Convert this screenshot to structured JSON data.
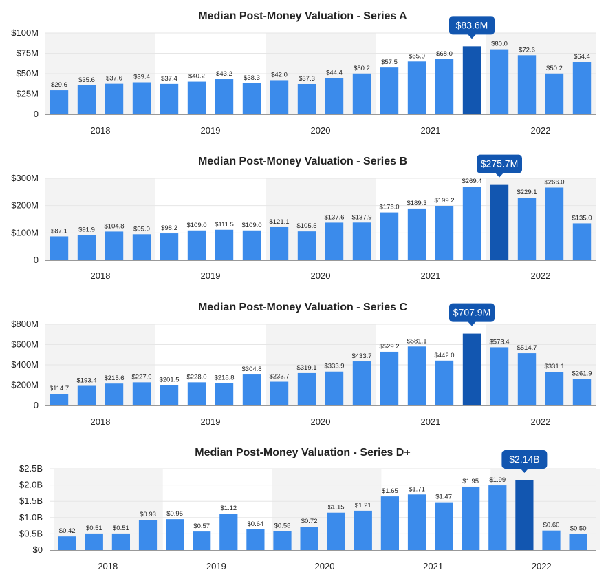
{
  "colors": {
    "bar": "#3b8beb",
    "highlight": "#1256b0",
    "band": "#f3f3f3",
    "grid": "#e6e6e6",
    "axis": "#999999"
  },
  "chart_data": [
    {
      "type": "bar",
      "title": "Median Post-Money Valuation - Series A",
      "year_labels": [
        "2018",
        "2019",
        "2020",
        "2021",
        "2022"
      ],
      "values": [
        29.6,
        35.6,
        37.6,
        39.4,
        37.4,
        40.2,
        43.2,
        38.3,
        42.0,
        37.3,
        44.4,
        50.2,
        57.5,
        65.0,
        68.0,
        83.6,
        80.0,
        72.6,
        50.2,
        64.4
      ],
      "labels": [
        "$29.6",
        "$35.6",
        "$37.6",
        "$39.4",
        "$37.4",
        "$40.2",
        "$43.2",
        "$38.3",
        "$42.0",
        "$37.3",
        "$44.4",
        "$50.2",
        "$57.5",
        "$65.0",
        "$68.0",
        "",
        "$80.0",
        "$72.6",
        "$50.2",
        "$64.4"
      ],
      "highlight_index": 15,
      "highlight_label": "$83.6M",
      "ylim": [
        0,
        100
      ],
      "yticks": [
        0,
        25,
        50,
        75,
        100
      ],
      "ytick_labels": [
        "0",
        "$25M",
        "$50M",
        "$75M",
        "$100M"
      ]
    },
    {
      "type": "bar",
      "title": "Median Post-Money Valuation - Series B",
      "year_labels": [
        "2018",
        "2019",
        "2020",
        "2021",
        "2022"
      ],
      "values": [
        87.1,
        91.9,
        104.8,
        95.0,
        98.2,
        109.0,
        111.5,
        109.0,
        121.1,
        105.5,
        137.6,
        137.9,
        175.0,
        189.3,
        199.2,
        269.4,
        275.7,
        229.1,
        266.0,
        135.0
      ],
      "labels": [
        "$87.1",
        "$91.9",
        "$104.8",
        "$95.0",
        "$98.2",
        "$109.0",
        "$111.5",
        "$109.0",
        "$121.1",
        "$105.5",
        "$137.6",
        "$137.9",
        "$175.0",
        "$189.3",
        "$199.2",
        "$269.4",
        "",
        "$229.1",
        "$266.0",
        "$135.0"
      ],
      "highlight_index": 16,
      "highlight_label": "$275.7M",
      "ylim": [
        0,
        300
      ],
      "yticks": [
        0,
        100,
        200,
        300
      ],
      "ytick_labels": [
        "0",
        "$100M",
        "$200M",
        "$300M"
      ]
    },
    {
      "type": "bar",
      "title": "Median Post-Money Valuation - Series C",
      "year_labels": [
        "2018",
        "2019",
        "2020",
        "2021",
        "2022"
      ],
      "values": [
        114.7,
        193.4,
        215.6,
        227.9,
        201.5,
        228.0,
        218.8,
        304.8,
        233.7,
        319.1,
        333.9,
        433.7,
        529.2,
        581.1,
        442.0,
        707.9,
        573.4,
        514.7,
        331.1,
        261.9
      ],
      "labels": [
        "$114.7",
        "$193.4",
        "$215.6",
        "$227.9",
        "$201.5",
        "$228.0",
        "$218.8",
        "$304.8",
        "$233.7",
        "$319.1",
        "$333.9",
        "$433.7",
        "$529.2",
        "$581.1",
        "$442.0",
        "",
        "$573.4",
        "$514.7",
        "$331.1",
        "$261.9"
      ],
      "highlight_index": 15,
      "highlight_label": "$707.9M",
      "ylim": [
        0,
        800
      ],
      "yticks": [
        0,
        200,
        400,
        600,
        800
      ],
      "ytick_labels": [
        "0",
        "$200M",
        "$400M",
        "$600M",
        "$800M"
      ]
    },
    {
      "type": "bar",
      "title": "Median Post-Money Valuation - Series D+",
      "year_labels": [
        "2018",
        "2019",
        "2020",
        "2021",
        "2022"
      ],
      "values": [
        0.42,
        0.51,
        0.51,
        0.93,
        0.95,
        0.57,
        1.12,
        0.64,
        0.58,
        0.72,
        1.15,
        1.21,
        1.65,
        1.71,
        1.47,
        1.95,
        1.99,
        2.14,
        0.6,
        0.5
      ],
      "labels": [
        "$0.42",
        "$0.51",
        "$0.51",
        "$0.93",
        "$0.95",
        "$0.57",
        "$1.12",
        "$0.64",
        "$0.58",
        "$0.72",
        "$1.15",
        "$1.21",
        "$1.65",
        "$1.71",
        "$1.47",
        "$1.95",
        "$1.99",
        "",
        "$0.60",
        "$0.50"
      ],
      "highlight_index": 17,
      "highlight_label": "$2.14B",
      "ylim": [
        0,
        2.5
      ],
      "yticks": [
        0,
        0.5,
        1.0,
        1.5,
        2.0,
        2.5
      ],
      "ytick_labels": [
        "$0",
        "$0.5B",
        "$1.0B",
        "$1.5B",
        "$2.0B",
        "$2.5B"
      ]
    }
  ]
}
